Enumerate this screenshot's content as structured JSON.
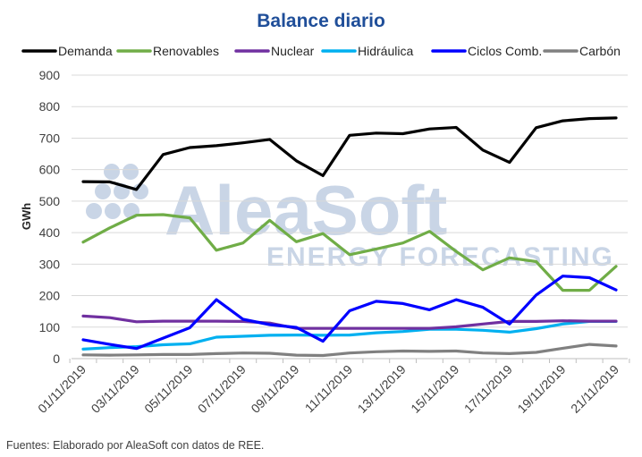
{
  "chart_data": {
    "type": "line",
    "title": "Balance diario",
    "ylabel": "GWh",
    "xlabel": "",
    "ylim": [
      0,
      900
    ],
    "yticks": [
      0,
      100,
      200,
      300,
      400,
      500,
      600,
      700,
      800,
      900
    ],
    "grid": true,
    "legend_position": "top",
    "x": [
      "01/11/2019",
      "02/11/2019",
      "03/11/2019",
      "04/11/2019",
      "05/11/2019",
      "06/11/2019",
      "07/11/2019",
      "08/11/2019",
      "09/11/2019",
      "10/11/2019",
      "11/11/2019",
      "12/11/2019",
      "13/11/2019",
      "14/11/2019",
      "15/11/2019",
      "16/11/2019",
      "17/11/2019",
      "18/11/2019",
      "19/11/2019",
      "20/11/2019",
      "21/11/2019"
    ],
    "xtick_labels": [
      "01/11/2019",
      "03/11/2019",
      "05/11/2019",
      "07/11/2019",
      "09/11/2019",
      "11/11/2019",
      "13/11/2019",
      "15/11/2019",
      "17/11/2019",
      "19/11/2019",
      "21/11/2019"
    ],
    "series": [
      {
        "name": "Demanda",
        "color": "#000000",
        "values": [
          562,
          561,
          537,
          648,
          670,
          676,
          685,
          696,
          628,
          581,
          709,
          716,
          714,
          729,
          734,
          662,
          623,
          733,
          755,
          762,
          764
        ]
      },
      {
        "name": "Renovables",
        "color": "#70ad47",
        "values": [
          370,
          415,
          455,
          457,
          447,
          344,
          367,
          439,
          371,
          397,
          330,
          348,
          367,
          404,
          340,
          282,
          320,
          308,
          217,
          217,
          293
        ]
      },
      {
        "name": "Nuclear",
        "color": "#7030a0",
        "values": [
          135,
          130,
          117,
          119,
          119,
          119,
          118,
          113,
          96,
          96,
          96,
          96,
          96,
          96,
          101,
          110,
          118,
          118,
          120,
          119,
          119
        ]
      },
      {
        "name": "Hidráulica",
        "color": "#00b0f0",
        "values": [
          30,
          35,
          38,
          44,
          47,
          68,
          71,
          74,
          75,
          74,
          75,
          82,
          86,
          93,
          93,
          90,
          84,
          95,
          110,
          118,
          118
        ]
      },
      {
        "name": "Ciclos Comb.",
        "color": "#0000ff",
        "values": [
          60,
          45,
          32,
          65,
          98,
          187,
          125,
          108,
          99,
          55,
          152,
          182,
          175,
          155,
          187,
          163,
          110,
          202,
          262,
          257,
          218
        ]
      },
      {
        "name": "Carbón",
        "color": "#808080",
        "values": [
          12,
          11,
          12,
          13,
          13,
          16,
          18,
          17,
          11,
          10,
          18,
          22,
          24,
          23,
          24,
          18,
          16,
          20,
          33,
          45,
          40
        ]
      }
    ]
  },
  "watermark": {
    "brand": "AleaSoft",
    "tagline": "ENERGY FORECASTING"
  },
  "footer": {
    "source": "Fuentes: Elaborado por AleaSoft con datos de REE."
  },
  "colors": {
    "title": "#1f4e99",
    "grid": "#d9d9d9",
    "axis": "#bfbfbf"
  }
}
